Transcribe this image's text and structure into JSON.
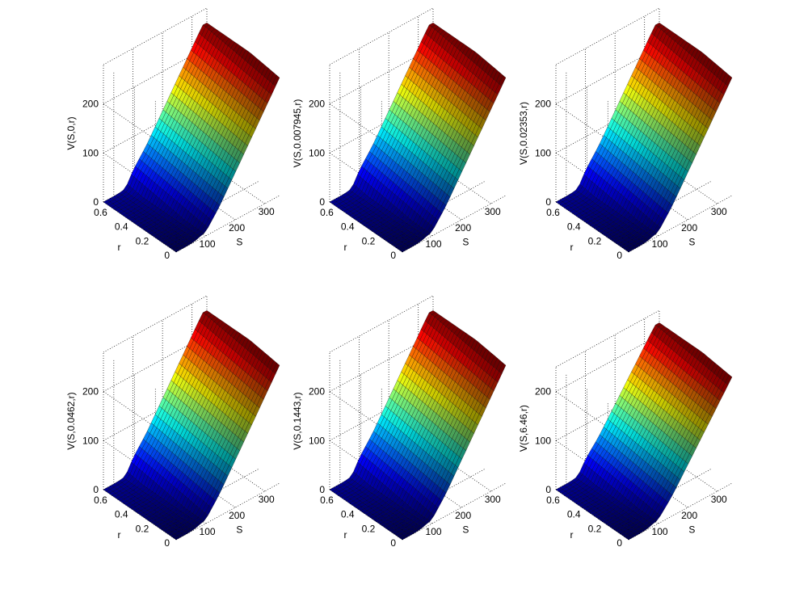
{
  "figure": {
    "background": "#ffffff",
    "colormap": [
      "#00008f",
      "#0000ff",
      "#0080ff",
      "#00ffff",
      "#80ff80",
      "#ffff00",
      "#ff8000",
      "#ff0000",
      "#800000"
    ]
  },
  "chart_data": [
    {
      "type": "surface",
      "zlabel": "V(S,0,r)",
      "xlabel": "S",
      "ylabel": "r",
      "xticks": [
        100,
        200,
        300
      ],
      "yticks": [
        0,
        0.2,
        0.4,
        0.6
      ],
      "zticks": [
        0,
        100,
        200
      ],
      "xlim": [
        0,
        350
      ],
      "ylim": [
        0,
        0.7
      ],
      "zlim": [
        0,
        280
      ],
      "zmax": 250,
      "grid": true
    },
    {
      "type": "surface",
      "zlabel": "V(S,0.007945,r)",
      "xlabel": "S",
      "ylabel": "r",
      "xticks": [
        100,
        200,
        300
      ],
      "yticks": [
        0,
        0.2,
        0.4,
        0.6
      ],
      "zticks": [
        0,
        100,
        200
      ],
      "xlim": [
        0,
        350
      ],
      "ylim": [
        0,
        0.7
      ],
      "zlim": [
        0,
        280
      ],
      "zmax": 250,
      "grid": true
    },
    {
      "type": "surface",
      "zlabel": "V(S,0.02353,r)",
      "xlabel": "S",
      "ylabel": "r",
      "xticks": [
        100,
        200,
        300
      ],
      "yticks": [
        0,
        0.2,
        0.4,
        0.6
      ],
      "zticks": [
        0,
        100,
        200
      ],
      "xlim": [
        0,
        350
      ],
      "ylim": [
        0,
        0.7
      ],
      "zlim": [
        0,
        280
      ],
      "zmax": 250,
      "grid": true
    },
    {
      "type": "surface",
      "zlabel": "V(S,0.0462,r)",
      "xlabel": "S",
      "ylabel": "r",
      "xticks": [
        100,
        200,
        300
      ],
      "yticks": [
        0,
        0.2,
        0.4,
        0.6
      ],
      "zticks": [
        0,
        100,
        200
      ],
      "xlim": [
        0,
        350
      ],
      "ylim": [
        0,
        0.7
      ],
      "zlim": [
        0,
        280
      ],
      "zmax": 250,
      "grid": true
    },
    {
      "type": "surface",
      "zlabel": "V(S,0.1443,r)",
      "xlabel": "S",
      "ylabel": "r",
      "xticks": [
        100,
        200,
        300
      ],
      "yticks": [
        0,
        0.2,
        0.4,
        0.6
      ],
      "zticks": [
        0,
        100,
        200
      ],
      "xlim": [
        0,
        350
      ],
      "ylim": [
        0,
        0.7
      ],
      "zlim": [
        0,
        280
      ],
      "zmax": 250,
      "grid": true
    },
    {
      "type": "surface",
      "zlabel": "V(S,6.46,r)",
      "xlabel": "S",
      "ylabel": "r",
      "xticks": [
        100,
        200,
        300
      ],
      "yticks": [
        0,
        0.2,
        0.4,
        0.6
      ],
      "zticks": [
        0,
        100,
        200
      ],
      "xlim": [
        0,
        350
      ],
      "ylim": [
        0,
        0.7
      ],
      "zlim": [
        0,
        250
      ],
      "zmax": 225,
      "grid": true
    }
  ]
}
